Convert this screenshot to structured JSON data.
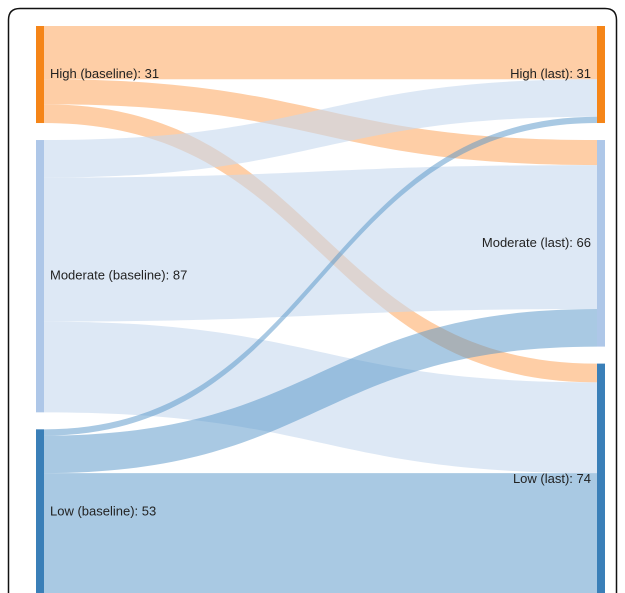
{
  "chart_data": {
    "type": "sankey",
    "nodes": [
      {
        "label": "High (baseline): 31",
        "value": 31,
        "side": "left",
        "color": "#f58518",
        "link_color": "rgba(253,174,107,0.6)"
      },
      {
        "label": "Moderate (baseline): 87",
        "value": 87,
        "side": "left",
        "color": "#aec7e8",
        "link_color": "rgba(198,216,239,0.6)"
      },
      {
        "label": "Low (baseline): 53",
        "value": 53,
        "side": "left",
        "color": "#3a7fb8",
        "link_color": "rgba(84,148,200,0.5)"
      },
      {
        "label": "High (last): 31",
        "value": 31,
        "side": "right",
        "color": "#f58518"
      },
      {
        "label": "Moderate (last): 66",
        "value": 66,
        "side": "right",
        "color": "#aec7e8"
      },
      {
        "label": "Low (last): 74",
        "value": 74,
        "side": "right",
        "color": "#3a7fb8"
      }
    ],
    "links": [
      {
        "source": 0,
        "target": 3,
        "value": 17
      },
      {
        "source": 0,
        "target": 4,
        "value": 8
      },
      {
        "source": 0,
        "target": 5,
        "value": 6
      },
      {
        "source": 1,
        "target": 3,
        "value": 12
      },
      {
        "source": 1,
        "target": 4,
        "value": 46
      },
      {
        "source": 1,
        "target": 5,
        "value": 29
      },
      {
        "source": 2,
        "target": 3,
        "value": 2
      },
      {
        "source": 2,
        "target": 4,
        "value": 12
      },
      {
        "source": 2,
        "target": 5,
        "value": 39
      }
    ]
  }
}
